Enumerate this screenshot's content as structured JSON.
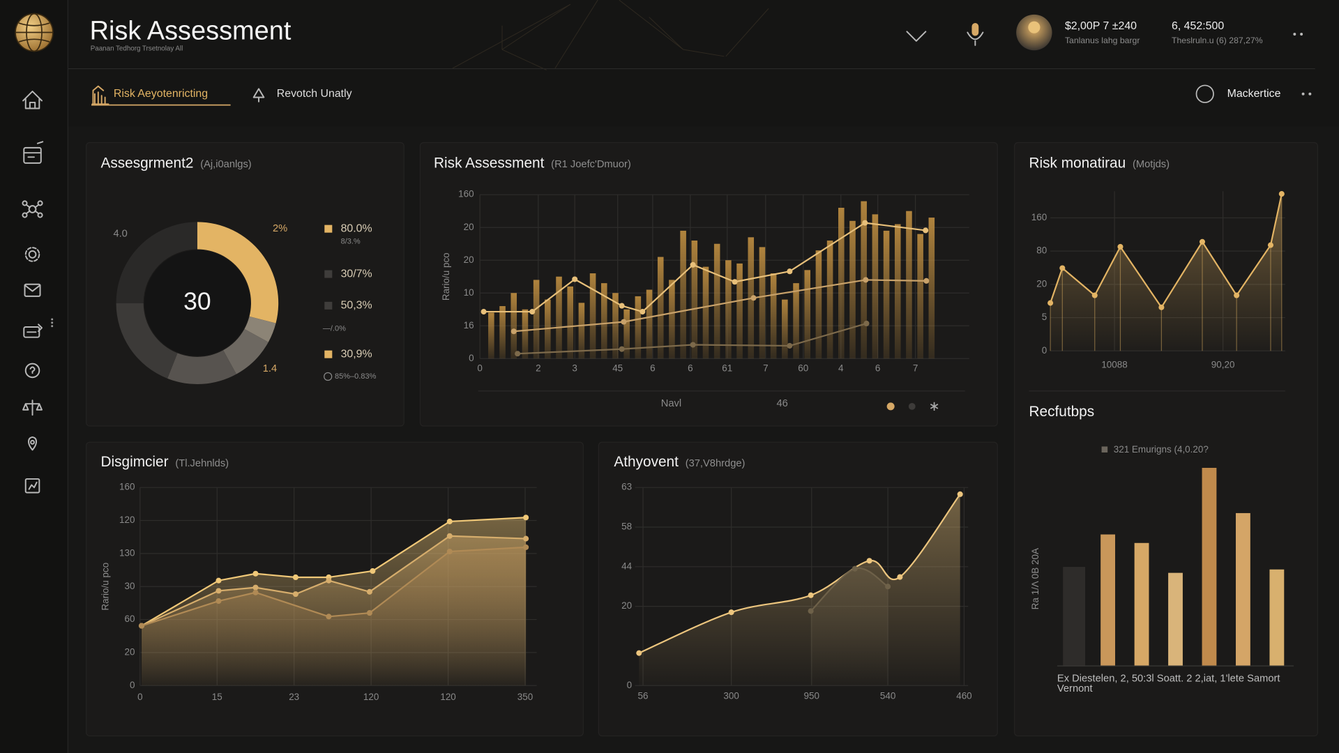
{
  "header": {
    "title": "Risk Assessment",
    "subtitle": "Paanan Tedhorg Trsetnolay All",
    "stats": [
      {
        "value": "$2,00P 7 ±240",
        "label": "Tanlanus lahg bargr"
      },
      {
        "value": "6, 452:500",
        "label": "Theslruln.u (6) 287,27%"
      }
    ]
  },
  "tabs": [
    "Risk Aeyotenricting",
    "Revotch Unatly"
  ],
  "account": "Mackertice",
  "chart_data": [
    {
      "type": "donut",
      "title": "Assesgrment2",
      "subtitle": "(Aj,i0anlgs)",
      "center_label": "30",
      "values": [
        29,
        4,
        9,
        14,
        19,
        25
      ],
      "colors": [
        "#e3b464",
        "#8c8476",
        "#6d6861",
        "#57534f",
        "#3c3a38",
        "#2a2928"
      ],
      "annotations": [
        "4.0",
        "2%",
        "1.4"
      ],
      "legend": [
        {
          "label": "80.0%",
          "note": "8/3.%",
          "color": "#e3b464"
        },
        {
          "label": "30/7%",
          "color": "#3f3d3b"
        },
        {
          "label": "50,3%",
          "color": "#3f3d3b"
        },
        {
          "label": "30,9%",
          "color": "#e3b464"
        }
      ],
      "notes": [
        "—/.0%",
        "85%–0.83%"
      ]
    },
    {
      "type": "combo",
      "title": "Risk Assessment",
      "subtitle": "(R1 Joefc'Dmuor)",
      "y_label": "Rario/u pco",
      "grid": true,
      "xlim": [
        0,
        13
      ],
      "xticks": [
        0,
        {
          "value": 1.55,
          "label": "2"
        },
        {
          "value": 2.52,
          "label": "3"
        },
        {
          "value": 3.66,
          "label": "45"
        },
        {
          "value": 4.59,
          "label": "6"
        },
        {
          "value": 5.59,
          "label": "6"
        },
        {
          "value": 6.57,
          "label": "61"
        },
        {
          "value": 7.59,
          "label": "7"
        },
        {
          "value": 8.59,
          "label": "60"
        },
        {
          "value": 9.59,
          "label": "4"
        },
        {
          "value": 10.57,
          "label": "6"
        },
        {
          "value": 11.57,
          "label": "7"
        }
      ],
      "ylim": [
        0,
        5
      ],
      "yticks": [
        0,
        {
          "value": 1,
          "label": "16"
        },
        {
          "value": 2,
          "label": "10"
        },
        {
          "value": 3,
          "label": "20"
        },
        {
          "value": 4,
          "label": "20"
        },
        {
          "value": 5,
          "label": "160"
        }
      ],
      "footer_labels": [
        "Navl",
        "46"
      ],
      "series": [
        {
          "type": "bar",
          "color": "#b8893f",
          "x": [
            0.3,
            0.6,
            0.9,
            1.2,
            1.5,
            1.8,
            2.1,
            2.4,
            2.7,
            3.0,
            3.3,
            3.6,
            3.9,
            4.2,
            4.5,
            4.8,
            5.1,
            5.4,
            5.7,
            6.0,
            6.3,
            6.6,
            6.9,
            7.2,
            7.5,
            7.8,
            8.1,
            8.4,
            8.7,
            9.0,
            9.3,
            9.6,
            9.9,
            10.2,
            10.5,
            10.8,
            11.1,
            11.4,
            11.7,
            12.0
          ],
          "values": [
            1.4,
            1.6,
            2.0,
            1.5,
            2.4,
            1.8,
            2.5,
            2.2,
            1.7,
            2.6,
            2.3,
            2.0,
            1.5,
            1.9,
            2.1,
            3.1,
            2.4,
            3.9,
            3.6,
            2.8,
            3.5,
            3.0,
            2.9,
            3.7,
            3.4,
            2.6,
            1.8,
            2.3,
            2.7,
            3.3,
            3.6,
            4.6,
            4.2,
            4.8,
            4.4,
            3.9,
            4.1,
            4.5,
            3.8,
            4.3
          ]
        },
        {
          "type": "line",
          "color": "#e8c07a",
          "x": [
            0.1,
            1.39,
            2.52,
            3.77,
            4.32,
            5.66,
            6.77,
            8.23,
            10.23,
            11.84
          ],
          "values": [
            1.43,
            1.43,
            2.42,
            1.61,
            1.43,
            2.86,
            2.34,
            2.66,
            4.14,
            3.91
          ]
        },
        {
          "type": "line",
          "color": "#c9a26a",
          "x": [
            0.9,
            3.82,
            7.27,
            10.25,
            11.86
          ],
          "values": [
            0.83,
            1.12,
            1.85,
            2.4,
            2.37
          ]
        },
        {
          "type": "line",
          "color": "#7d6a4b",
          "x": [
            1.0,
            3.77,
            5.66,
            8.23,
            10.27
          ],
          "values": [
            0.15,
            0.29,
            0.42,
            0.39,
            1.07
          ]
        }
      ]
    },
    {
      "type": "line",
      "title": "Risk monatirau",
      "subtitle": "(Motjds)",
      "grid": true,
      "area": true,
      "drop_lines": true,
      "xlim": [
        0,
        10
      ],
      "xticks": [
        {
          "value": 2.73,
          "label": "10088"
        },
        {
          "value": 7.35,
          "label": "90,20"
        }
      ],
      "ylim": [
        0,
        4.8
      ],
      "yticks": [
        0,
        {
          "value": 1,
          "label": "5"
        },
        {
          "value": 2,
          "label": "20"
        },
        {
          "value": 3,
          "label": "80"
        },
        {
          "value": 4,
          "label": "160"
        }
      ],
      "series": [
        {
          "color": "#e3b464",
          "x": [
            0,
            0.51,
            1.89,
            2.98,
            4.73,
            6.47,
            7.93,
            9.38,
            9.85
          ],
          "values": [
            1.44,
            2.49,
            1.67,
            3.13,
            1.31,
            3.28,
            1.67,
            3.18,
            4.72
          ]
        }
      ]
    },
    {
      "type": "bar",
      "title": "Recfutbps",
      "legend_label": "321 Emurigns (4,0.20?",
      "legend_color": "#6b655c",
      "y_label": "Ra 1/Λ 0B 20A",
      "x_label": [
        "Ex Diestelen, 2, 50:3l Soatt. 2 2,iat, 1'lete Samort",
        "Vernont"
      ],
      "ylim": [
        0,
        250
      ],
      "values": [
        116,
        154,
        144,
        109,
        232,
        179,
        113
      ],
      "colors": [
        "#2e2c2a",
        "#c9975a",
        "#d6a866",
        "#d9b47a",
        "#c08a4c",
        "#d4a567",
        "#d8b06e"
      ]
    },
    {
      "type": "line",
      "title": "Disgimcier",
      "subtitle": "(Tl.Jehnlds)",
      "y_label": "Rario/u pco",
      "grid": true,
      "area": true,
      "xlim": [
        0,
        5.15
      ],
      "xticks": [
        0,
        {
          "value": 1,
          "label": "15"
        },
        {
          "value": 2,
          "label": "23"
        },
        {
          "value": 3,
          "label": "120"
        },
        {
          "value": 4,
          "label": "120"
        },
        {
          "value": 5,
          "label": "350"
        }
      ],
      "ylim": [
        0,
        6
      ],
      "yticks": [
        0,
        {
          "value": 1,
          "label": "20"
        },
        {
          "value": 2,
          "label": "60"
        },
        {
          "value": 3,
          "label": "30"
        },
        {
          "value": 4,
          "label": "130"
        },
        {
          "value": 5,
          "label": "120"
        },
        {
          "value": 6,
          "label": "160"
        }
      ],
      "series": [
        {
          "color": "#f0c878",
          "x": [
            0.02,
            1.02,
            1.5,
            2.02,
            2.45,
            3.02,
            4.02,
            5.01
          ],
          "values": [
            1.81,
            3.18,
            3.39,
            3.28,
            3.28,
            3.47,
            4.97,
            5.09
          ]
        },
        {
          "color": "#d6ad6c",
          "x": [
            0.02,
            1.02,
            1.5,
            2.02,
            2.45,
            2.98,
            4.02,
            5.01
          ],
          "values": [
            1.81,
            2.87,
            2.97,
            2.77,
            3.18,
            2.84,
            4.53,
            4.45
          ]
        },
        {
          "color": "#b08a55",
          "x": [
            0.02,
            1.02,
            1.5,
            2.45,
            2.98,
            4.02,
            5.01
          ],
          "values": [
            1.81,
            2.56,
            2.82,
            2.09,
            2.2,
            4.06,
            4.19
          ]
        }
      ]
    },
    {
      "type": "line",
      "title": "Athyovent",
      "subtitle": "(37,V8hrdge)",
      "grid": true,
      "area": true,
      "smooth": true,
      "xlim": [
        -0.1,
        4.05
      ],
      "xticks": [
        {
          "value": 0,
          "label": "56"
        },
        {
          "value": 1.1,
          "label": "300"
        },
        {
          "value": 2.1,
          "label": "950"
        },
        {
          "value": 3.05,
          "label": "540"
        },
        {
          "value": 4,
          "label": "460"
        }
      ],
      "ylim": [
        0,
        5
      ],
      "yticks": [
        0,
        {
          "value": 2,
          "label": "20"
        },
        {
          "value": 3,
          "label": "44"
        },
        {
          "value": 4,
          "label": "58"
        },
        {
          "value": 5,
          "label": "63"
        }
      ],
      "series": [
        {
          "color": "#ecc57e",
          "x": [
            -0.05,
            1.1,
            2.09,
            2.82,
            3.2,
            3.95
          ],
          "values": [
            0.82,
            1.85,
            2.28,
            3.15,
            2.74,
            4.83
          ]
        },
        {
          "color": "#6e6149",
          "x": [
            2.09,
            2.64,
            3.05
          ],
          "values": [
            1.88,
            2.95,
            2.5
          ]
        }
      ]
    }
  ]
}
